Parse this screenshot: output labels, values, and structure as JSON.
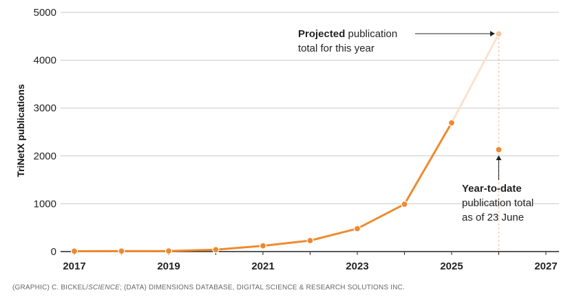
{
  "chart_data": {
    "type": "line",
    "ylabel": "TriNetX publications",
    "ylim": [
      0,
      5000
    ],
    "yticks": [
      0,
      1000,
      2000,
      3000,
      4000,
      5000
    ],
    "xlim": [
      2017,
      2027
    ],
    "xticks": [
      2017,
      2019,
      2021,
      2023,
      2025,
      2027
    ],
    "x": [
      2017,
      2018,
      2019,
      2020,
      2021,
      2022,
      2023,
      2024,
      2025,
      2026
    ],
    "series": [
      {
        "name": "",
        "values": [
          8,
          10,
          12,
          40,
          120,
          230,
          480,
          990,
          2690,
          null
        ]
      }
    ],
    "projected": {
      "x": 2026,
      "value": 4550
    },
    "year_to_date": {
      "x": 2026,
      "value": 2130
    },
    "annotations": {
      "projected": {
        "bold": "Projected",
        "rest": " publication",
        "line2": "total for this year"
      },
      "ytd": {
        "line1": "Year-to-date",
        "line2": "publication total",
        "line3": "as of 23 June"
      }
    },
    "colors": {
      "main": "#ee8a2e",
      "projected": "#f6c7a3",
      "projected_line": "#fbe1cf",
      "grid": "#c8c8c8",
      "axis": "#222222"
    }
  },
  "credit": {
    "part1": "(GRAPHIC) C. BICKEL/",
    "part2": "SCIENCE",
    "part3": "; (DATA) DIMENSIONS DATABASE, DIGITAL SCIENCE & RESEARCH SOLUTIONS INC."
  }
}
